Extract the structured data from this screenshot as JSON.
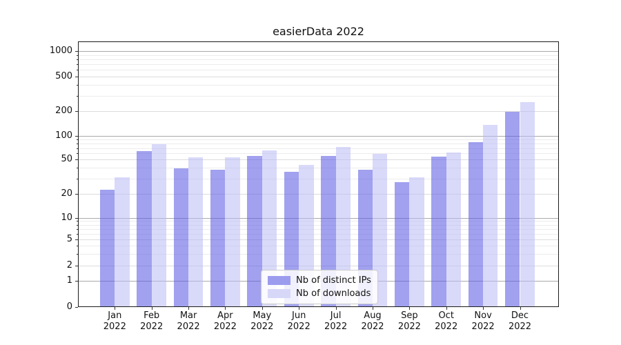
{
  "title": "easierData 2022",
  "chart_data": {
    "type": "bar",
    "title": "easierData 2022",
    "x_months": [
      "Jan",
      "Feb",
      "Mar",
      "Apr",
      "May",
      "Jun",
      "Jul",
      "Aug",
      "Sep",
      "Oct",
      "Nov",
      "Dec"
    ],
    "x_year_label": "2022",
    "categories": [
      "Jan 2022",
      "Feb 2022",
      "Mar 2022",
      "Apr 2022",
      "May 2022",
      "Jun 2022",
      "Jul 2022",
      "Aug 2022",
      "Sep 2022",
      "Oct 2022",
      "Nov 2022",
      "Dec 2022"
    ],
    "series": [
      {
        "name": "Nb of distinct IPs",
        "color": "#9c9cef",
        "fill": "rgba(88,88,226,0.56)",
        "values": [
          22,
          64,
          39,
          38,
          55,
          36,
          55,
          38,
          27,
          54,
          84,
          195
        ]
      },
      {
        "name": "Nb of downloads",
        "color": "#d7d7f8",
        "fill": "rgba(185,185,245,0.55)",
        "values": [
          31,
          79,
          53,
          53,
          65,
          43,
          72,
          59,
          31,
          61,
          135,
          250
        ]
      }
    ],
    "y_scale": "symlog",
    "y_ticks": [
      0,
      1,
      2,
      5,
      10,
      20,
      50,
      100,
      200,
      500,
      1000
    ],
    "ylim": [
      0,
      1300
    ],
    "grid": true,
    "legend_position": "lower center",
    "grid_colors": {
      "decade": "#a9a9a9",
      "labeled": "#dcdcdc",
      "minor": "#ececec"
    }
  }
}
